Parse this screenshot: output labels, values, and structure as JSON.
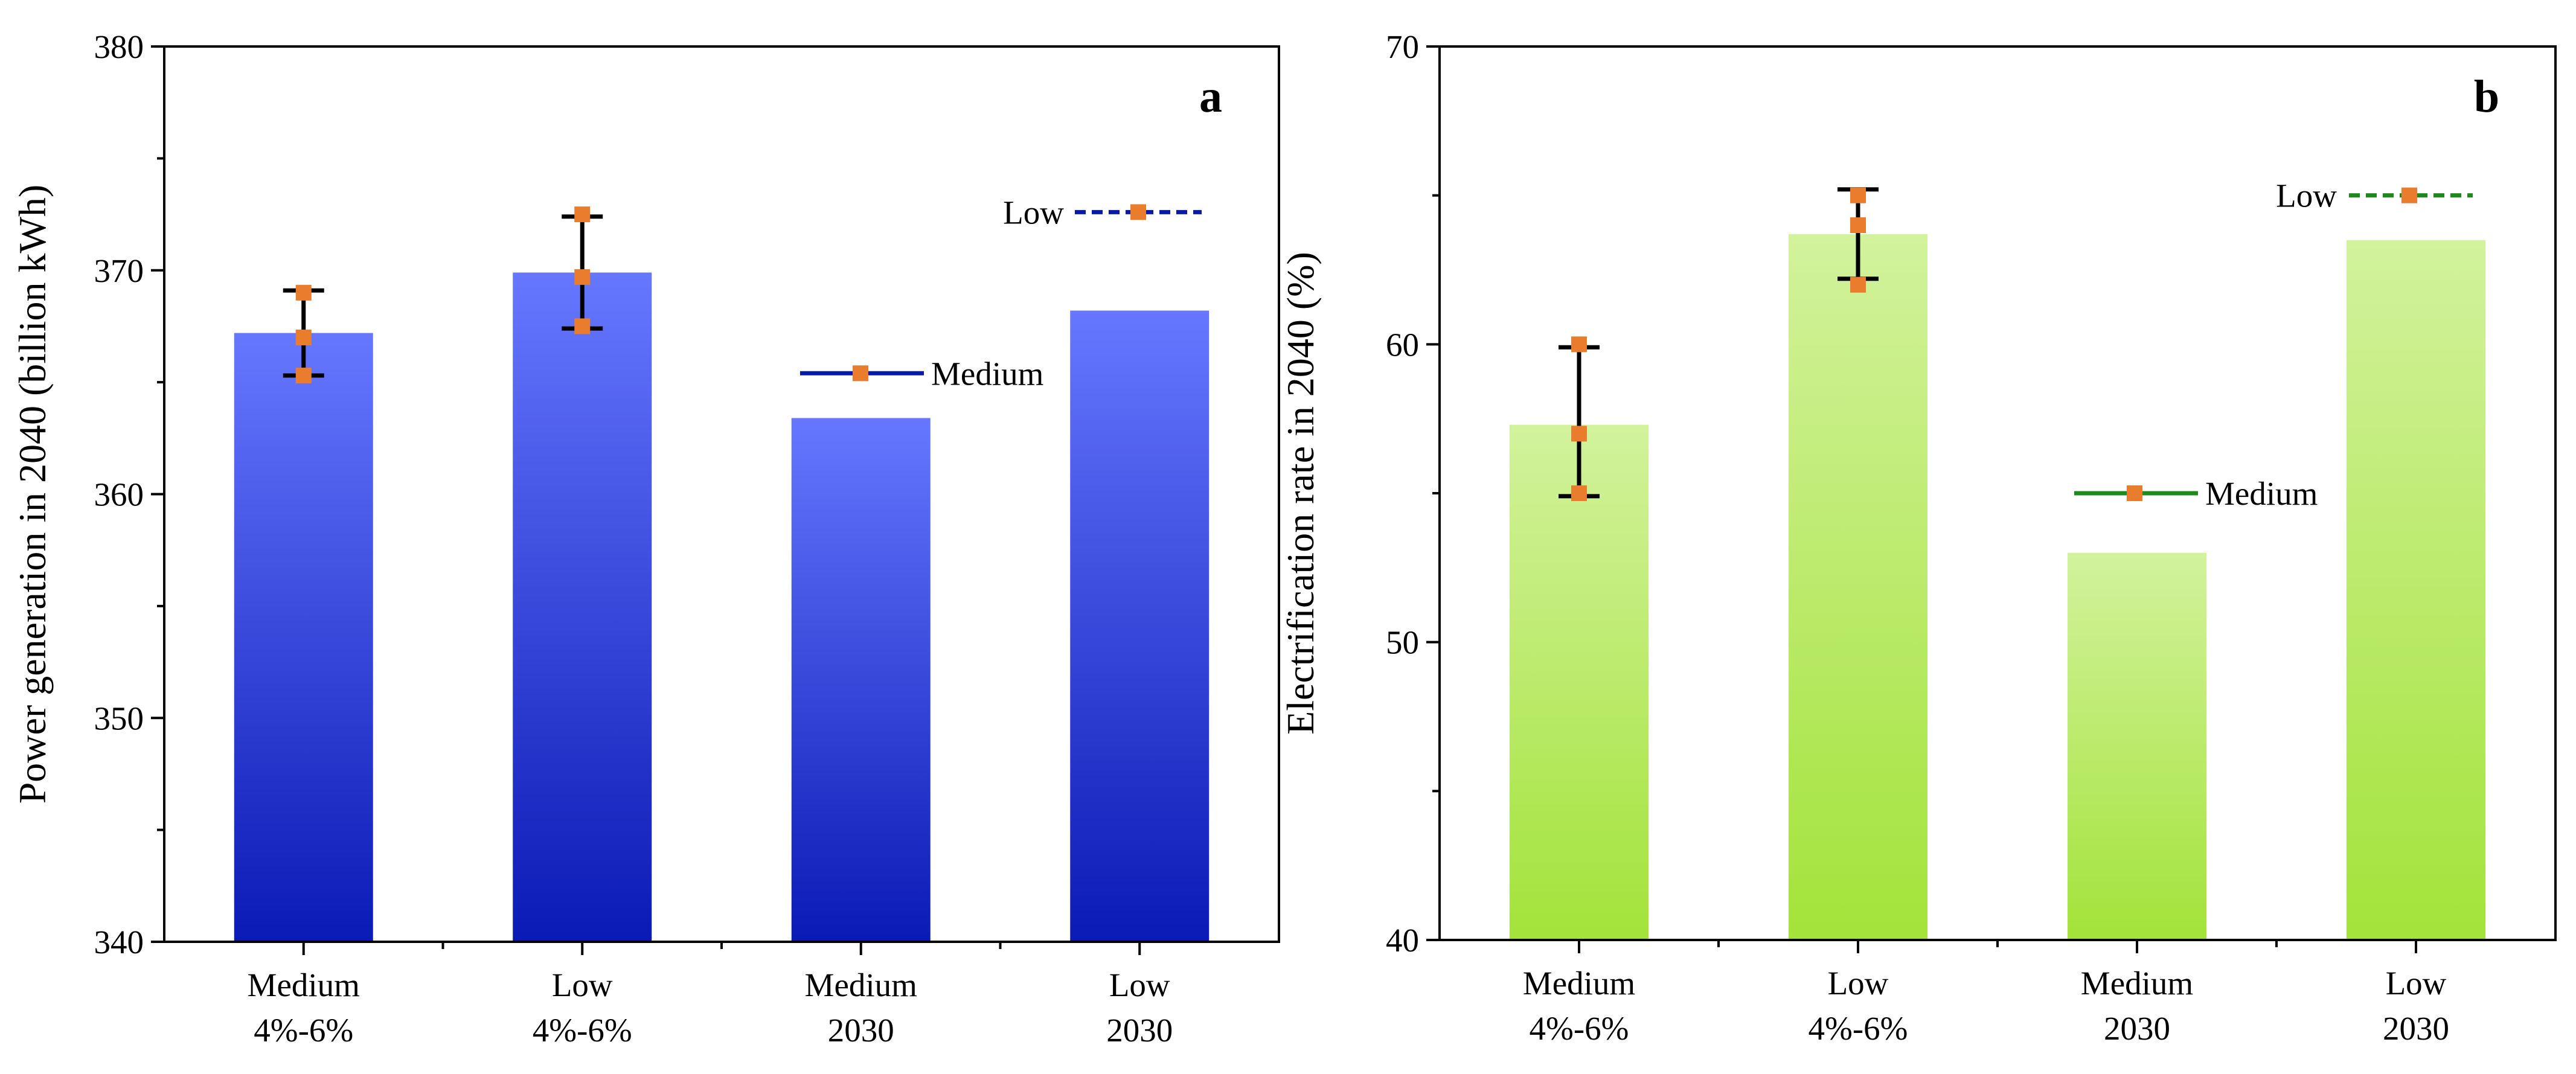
{
  "chart_data": [
    {
      "panel": "a",
      "type": "bar",
      "ylabel": "Power generation in 2040 (billion kWh)",
      "ylim": [
        340,
        380
      ],
      "yticks": [
        340,
        350,
        360,
        370,
        380
      ],
      "categories": [
        [
          "Medium",
          "4%-6%"
        ],
        [
          "Low",
          "4%-6%"
        ],
        [
          "Medium",
          "2030"
        ],
        [
          "Low",
          "2030"
        ]
      ],
      "values": [
        367.2,
        369.9,
        363.4,
        368.2
      ],
      "error_bars": [
        {
          "index": 0,
          "low": 365.3,
          "high": 369.1,
          "points": [
            365.3,
            367.0,
            369.0
          ]
        },
        {
          "index": 1,
          "low": 367.4,
          "high": 372.4,
          "points": [
            367.5,
            369.7,
            372.5
          ]
        }
      ],
      "reference_lines": [
        {
          "label": "Medium",
          "value": 365.4,
          "style": "solid"
        },
        {
          "label": "Low",
          "value": 372.6,
          "style": "dashed"
        }
      ],
      "colors": {
        "bar_top": "#6677ff",
        "bar_bottom": "#0a1ab5",
        "line": "#0a1aa8",
        "marker": "#ea7c2e",
        "error": "#000000"
      }
    },
    {
      "panel": "b",
      "type": "bar",
      "ylabel": "Electrification rate in 2040 (%)",
      "ylim": [
        40,
        70
      ],
      "yticks": [
        40,
        50,
        60,
        70
      ],
      "categories": [
        [
          "Medium",
          "4%-6%"
        ],
        [
          "Low",
          "4%-6%"
        ],
        [
          "Medium",
          "2030"
        ],
        [
          "Low",
          "2030"
        ]
      ],
      "values": [
        57.3,
        63.7,
        53.0,
        63.5
      ],
      "error_bars": [
        {
          "index": 0,
          "low": 54.9,
          "high": 59.9,
          "points": [
            55.0,
            57.0,
            60.0
          ]
        },
        {
          "index": 1,
          "low": 62.2,
          "high": 65.2,
          "points": [
            62.0,
            64.0,
            65.0
          ]
        }
      ],
      "reference_lines": [
        {
          "label": "Medium",
          "value": 55.0,
          "style": "solid"
        },
        {
          "label": "Low",
          "value": 65.0,
          "style": "dashed"
        }
      ],
      "colors": {
        "bar_top": "#d2f29c",
        "bar_bottom": "#a3e33a",
        "line": "#1e8a1e",
        "marker": "#ea7c2e",
        "error": "#000000"
      }
    }
  ]
}
